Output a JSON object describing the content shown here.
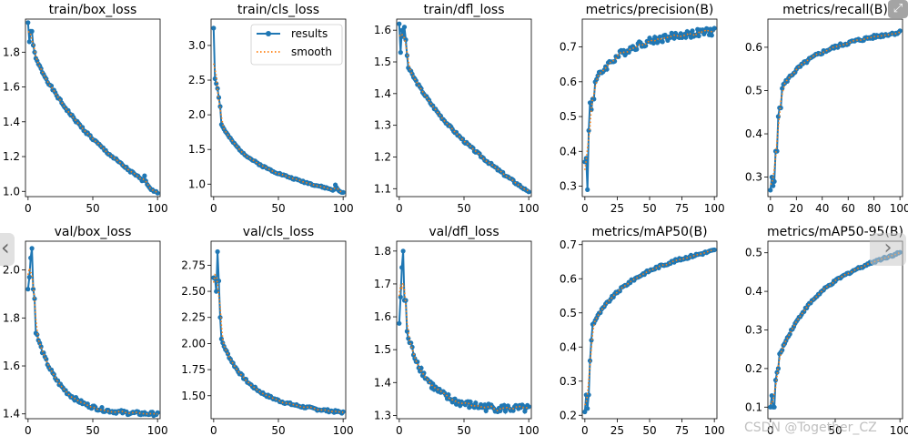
{
  "legend": {
    "results": "results",
    "smooth": "smooth"
  },
  "colors": {
    "results": "#1f77b4",
    "smooth": "#ff7f0e"
  },
  "overlay": {
    "watermark": "CSDN @Together_CZ",
    "next_icon": "›",
    "expand_icon": "⤢"
  },
  "chart_data": [
    {
      "type": "line",
      "title": "train/box_loss",
      "xlabel": "",
      "ylabel": "",
      "xlim": [
        -2,
        102
      ],
      "ylim": [
        0.97,
        1.99
      ],
      "xticks": [
        0,
        50,
        100
      ],
      "xtick_labels": [
        "0",
        "50",
        "100"
      ],
      "yticks": [
        1.0,
        1.2,
        1.4,
        1.6,
        1.8
      ],
      "ytick_labels": [
        "1.0",
        "1.2",
        "1.4",
        "1.6",
        "1.8"
      ],
      "curve": {
        "shape": "decay",
        "start": 1.86,
        "end": 1.0,
        "k": 3.2,
        "lin": 0.55,
        "noise": 0.008,
        "seed": 1
      },
      "head": [
        1.97,
        1.86,
        1.92,
        1.92,
        1.84,
        1.8
      ],
      "drop": {
        "from": 90,
        "values": [
          1.09,
          1.06,
          1.04,
          1.03,
          1.02,
          1.01,
          1.01,
          1.0,
          1.0,
          1.0,
          0.99
        ]
      }
    },
    {
      "type": "line",
      "title": "train/cls_loss",
      "xlabel": "",
      "ylabel": "",
      "xlim": [
        -2,
        102
      ],
      "ylim": [
        0.82,
        3.38
      ],
      "xticks": [
        0,
        50,
        100
      ],
      "xtick_labels": [
        "0",
        "50",
        "100"
      ],
      "yticks": [
        1.0,
        1.5,
        2.0,
        2.5,
        3.0
      ],
      "ytick_labels": [
        "1.0",
        "1.5",
        "2.0",
        "2.5",
        "3.0"
      ],
      "curve": {
        "shape": "decay",
        "start": 2.1,
        "end": 0.88,
        "k": 5.5,
        "lin": 0.38,
        "noise": 0.012,
        "seed": 2
      },
      "head": [
        3.25,
        2.52,
        2.45,
        2.38,
        2.25,
        2.12
      ],
      "drop": {
        "from": 94,
        "values": [
          0.99,
          0.95,
          0.92,
          0.9,
          0.89,
          0.88,
          0.88
        ]
      }
    },
    {
      "type": "line",
      "title": "train/dfl_loss",
      "xlabel": "",
      "ylabel": "",
      "xlim": [
        -2,
        102
      ],
      "ylim": [
        1.075,
        1.635
      ],
      "xticks": [
        0,
        50,
        100
      ],
      "xtick_labels": [
        "0",
        "50",
        "100"
      ],
      "yticks": [
        1.1,
        1.2,
        1.3,
        1.4,
        1.5,
        1.6
      ],
      "ytick_labels": [
        "1.1",
        "1.2",
        "1.3",
        "1.4",
        "1.5",
        "1.6"
      ],
      "curve": {
        "shape": "decay",
        "start": 1.54,
        "end": 1.09,
        "k": 3.0,
        "lin": 0.55,
        "noise": 0.004,
        "seed": 3
      },
      "head": [
        1.62,
        1.53,
        1.6,
        1.58,
        1.61,
        1.57,
        1.52
      ],
      "drop": {
        "from": 97,
        "values": [
          1.1,
          1.095,
          1.093,
          1.09
        ]
      }
    },
    {
      "type": "line",
      "title": "metrics/precision(B)",
      "xlabel": "",
      "ylabel": "",
      "xlim": [
        -2,
        102
      ],
      "ylim": [
        0.27,
        0.78
      ],
      "xticks": [
        0,
        25,
        50,
        75,
        100
      ],
      "xtick_labels": [
        "0",
        "25",
        "50",
        "75",
        "100"
      ],
      "yticks": [
        0.3,
        0.4,
        0.5,
        0.6,
        0.7
      ],
      "ytick_labels": [
        "0.3",
        "0.4",
        "0.5",
        "0.6",
        "0.7"
      ],
      "curve": {
        "shape": "rise",
        "start": 0.54,
        "end": 0.745,
        "k": 5.0,
        "lin": 0.15,
        "noise": 0.011,
        "seed": 4
      },
      "head": [
        0.37,
        0.38,
        0.29,
        0.46,
        0.54,
        0.52,
        0.55,
        0.55
      ]
    },
    {
      "type": "line",
      "title": "metrics/recall(B)",
      "xlabel": "",
      "ylabel": "",
      "xlim": [
        -2,
        102
      ],
      "ylim": [
        0.255,
        0.665
      ],
      "xticks": [
        0,
        20,
        40,
        60,
        80,
        100
      ],
      "xtick_labels": [
        "0",
        "20",
        "40",
        "60",
        "80",
        "100"
      ],
      "yticks": [
        0.3,
        0.4,
        0.5,
        0.6
      ],
      "ytick_labels": [
        "0.3",
        "0.4",
        "0.5",
        "0.6"
      ],
      "curve": {
        "shape": "rise",
        "start": 0.46,
        "end": 0.635,
        "k": 4.5,
        "lin": 0.25,
        "noise": 0.004,
        "seed": 5
      },
      "head": [
        0.27,
        0.3,
        0.28,
        0.29,
        0.36,
        0.36,
        0.44,
        0.46,
        0.46
      ]
    },
    {
      "type": "line",
      "title": "val/box_loss",
      "xlabel": "",
      "ylabel": "",
      "xlim": [
        -2,
        102
      ],
      "ylim": [
        1.38,
        2.12
      ],
      "xticks": [
        0,
        50,
        100
      ],
      "xtick_labels": [
        "0",
        "50",
        "100"
      ],
      "yticks": [
        1.4,
        1.6,
        1.8,
        2.0
      ],
      "ytick_labels": [
        "1.4",
        "1.6",
        "1.8",
        "2.0"
      ],
      "curve": {
        "shape": "decay",
        "start": 1.88,
        "end": 1.4,
        "k": 5.5,
        "lin": 0.0,
        "noise": 0.008,
        "seed": 6
      },
      "head": [
        1.92,
        1.97,
        2.05,
        2.09,
        1.92,
        1.88
      ]
    },
    {
      "type": "line",
      "title": "val/cls_loss",
      "xlabel": "",
      "ylabel": "",
      "xlim": [
        -2,
        102
      ],
      "ylim": [
        1.28,
        2.98
      ],
      "xticks": [
        0,
        50,
        100
      ],
      "xtick_labels": [
        "0",
        "50",
        "100"
      ],
      "yticks": [
        1.5,
        1.75,
        2.0,
        2.25,
        2.5,
        2.75
      ],
      "ytick_labels": [
        "1.50",
        "1.75",
        "2.00",
        "2.25",
        "2.50",
        "2.75"
      ],
      "curve": {
        "shape": "decay",
        "start": 2.25,
        "end": 1.34,
        "k": 5.0,
        "lin": 0.12,
        "noise": 0.012,
        "seed": 7
      },
      "head": [
        2.63,
        2.62,
        2.5,
        2.88,
        2.6,
        2.25
      ]
    },
    {
      "type": "line",
      "title": "val/dfl_loss",
      "xlabel": "",
      "ylabel": "",
      "xlim": [
        -2,
        102
      ],
      "ylim": [
        1.29,
        1.83
      ],
      "xticks": [
        0,
        50,
        100
      ],
      "xtick_labels": [
        "0",
        "50",
        "100"
      ],
      "yticks": [
        1.3,
        1.4,
        1.5,
        1.6,
        1.7,
        1.8
      ],
      "ytick_labels": [
        "1.3",
        "1.4",
        "1.5",
        "1.6",
        "1.7",
        "1.8"
      ],
      "curve": {
        "shape": "decay",
        "start": 1.65,
        "end": 1.32,
        "k": 6.0,
        "lin": 0.0,
        "noise": 0.012,
        "seed": 8
      },
      "head": [
        1.58,
        1.66,
        1.75,
        1.8,
        1.65,
        1.65
      ]
    },
    {
      "type": "line",
      "title": "metrics/mAP50(B)",
      "xlabel": "",
      "ylabel": "",
      "xlim": [
        -2,
        102
      ],
      "ylim": [
        0.19,
        0.71
      ],
      "xticks": [
        0,
        25,
        50,
        75,
        100
      ],
      "xtick_labels": [
        "0",
        "25",
        "50",
        "75",
        "100"
      ],
      "yticks": [
        0.2,
        0.3,
        0.4,
        0.5,
        0.6,
        0.7
      ],
      "ytick_labels": [
        "0.2",
        "0.3",
        "0.4",
        "0.5",
        "0.6",
        "0.7"
      ],
      "curve": {
        "shape": "rise",
        "start": 0.42,
        "end": 0.683,
        "k": 4.0,
        "lin": 0.28,
        "noise": 0.004,
        "seed": 9
      },
      "head": [
        0.21,
        0.26,
        0.22,
        0.26,
        0.36,
        0.42
      ]
    },
    {
      "type": "line",
      "title": "metrics/mAP50-95(B)",
      "xlabel": "",
      "ylabel": "",
      "xlim": [
        -2,
        102
      ],
      "ylim": [
        0.07,
        0.53
      ],
      "xticks": [
        0,
        50,
        100
      ],
      "xtick_labels": [
        "0",
        "50",
        "100"
      ],
      "yticks": [
        0.1,
        0.2,
        0.3,
        0.4,
        0.5
      ],
      "ytick_labels": [
        "0.1",
        "0.2",
        "0.3",
        "0.4",
        "0.5"
      ],
      "curve": {
        "shape": "rise",
        "start": 0.17,
        "end": 0.5,
        "k": 3.8,
        "lin": 0.25,
        "noise": 0.003,
        "seed": 10
      },
      "head": [
        0.1,
        0.13,
        0.1,
        0.1,
        0.17,
        0.19,
        0.2
      ]
    }
  ]
}
